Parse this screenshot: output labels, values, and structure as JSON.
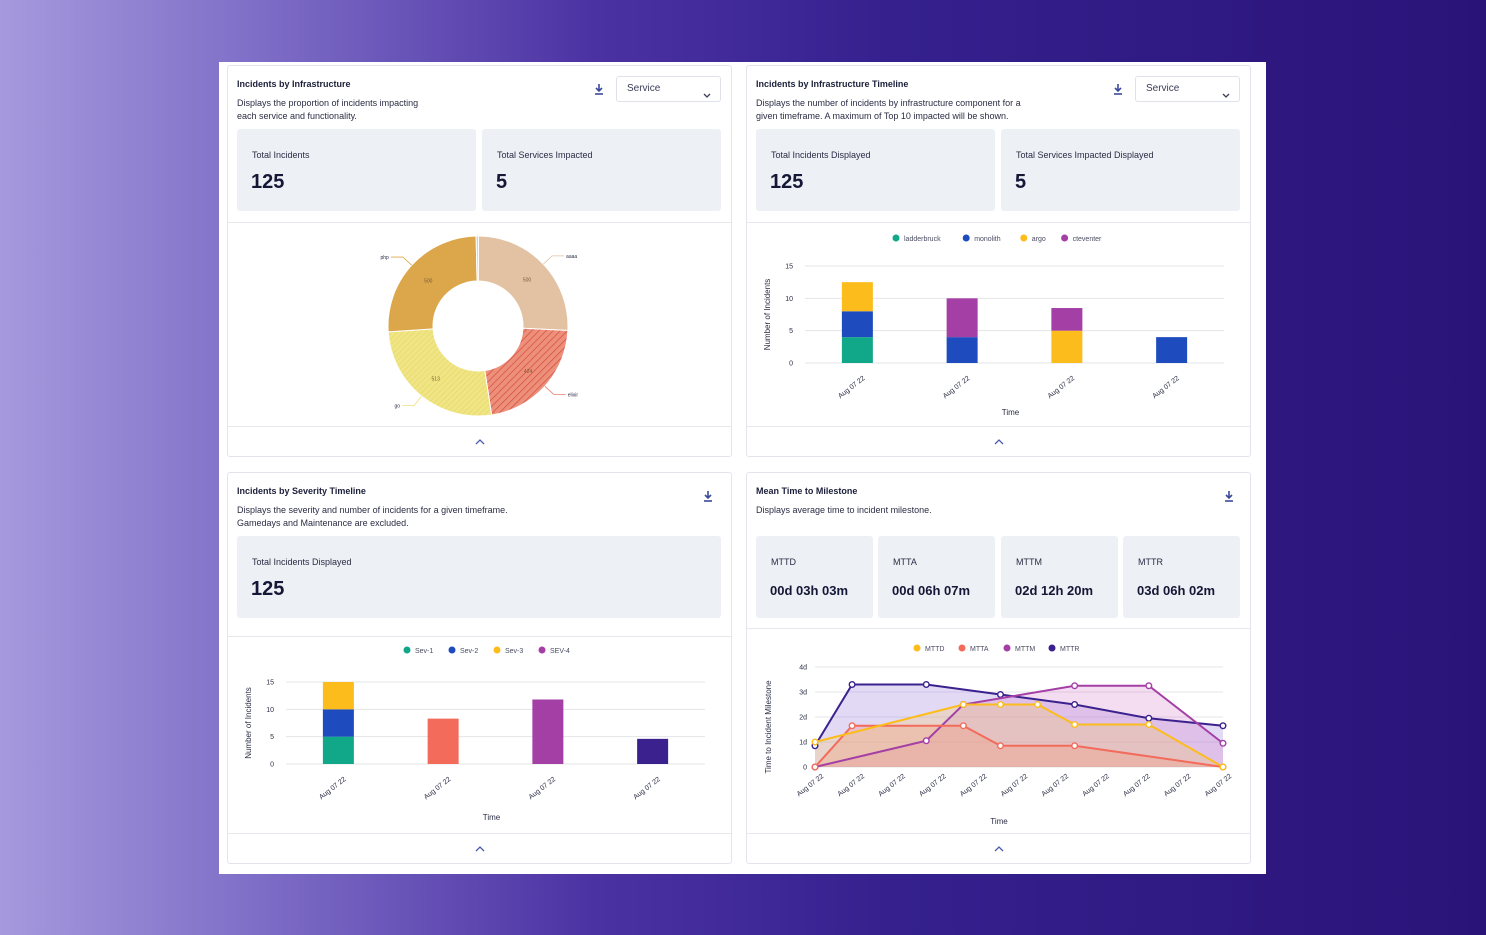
{
  "cards": {
    "infra": {
      "title": "Incidents by Infrastructure",
      "description": "Displays the proportion of incidents impacting\neach service and functionality.",
      "select_value": "Service",
      "stats": [
        {
          "label": "Total Incidents",
          "value": "125"
        },
        {
          "label": "Total Services Impacted",
          "value": "5"
        }
      ]
    },
    "infra_timeline": {
      "title": "Incidents by Infrastructure Timeline",
      "description": "Displays the number of incidents by infrastructure component for a\ngiven timeframe. A maximum of Top 10 impacted will be shown.",
      "select_value": "Service",
      "stats": [
        {
          "label": "Total Incidents Displayed",
          "value": "125"
        },
        {
          "label": "Total Services Impacted Displayed",
          "value": "5"
        }
      ]
    },
    "severity": {
      "title": "Incidents by Severity Timeline",
      "description": "Displays the severity and number of incidents for a given timeframe.\nGamedays and Maintenance are excluded.",
      "stats": [
        {
          "label": "Total Incidents Displayed",
          "value": "125"
        }
      ]
    },
    "mttm": {
      "title": "Mean Time to Milestone",
      "description": "Displays average time to incident milestone.",
      "stats": [
        {
          "label": "MTTD",
          "value": "00d 03h 03m"
        },
        {
          "label": "MTTA",
          "value": "00d 06h 07m"
        },
        {
          "label": "MTTM",
          "value": "02d 12h 20m"
        },
        {
          "label": "MTTR",
          "value": "03d 06h 02m"
        }
      ]
    }
  },
  "icons": {
    "download": "download-icon",
    "chevron_down": "chevron-down-icon",
    "chevron_up": "chevron-up-icon"
  },
  "chart_data": [
    {
      "type": "pie",
      "variant": "donut",
      "slices": [
        {
          "label": "aaaa",
          "value": 500,
          "color": "#e2c2a2"
        },
        {
          "label": "elixir",
          "value": 424,
          "color": "#e9826e",
          "pattern": "hatched"
        },
        {
          "label": "go",
          "value": 513,
          "color": "#eee07a",
          "pattern": "hatched"
        },
        {
          "label": "php",
          "value": 500,
          "color": "#dca64b"
        },
        {
          "label": "",
          "value": 8,
          "color": "#c8d1c8"
        }
      ]
    },
    {
      "type": "bar",
      "stacked": true,
      "categories": [
        "Aug 07 22",
        "Aug 07 22",
        "Aug 07 22",
        "Aug 07 22"
      ],
      "series": [
        {
          "name": "ladderbruck",
          "color": "#11a88a",
          "values": [
            4,
            0,
            0,
            0
          ]
        },
        {
          "name": "monolith",
          "color": "#1e4bbe",
          "values": [
            4,
            4,
            0,
            4
          ]
        },
        {
          "name": "argo",
          "color": "#fcbd1c",
          "values": [
            4.5,
            0,
            5,
            0
          ]
        },
        {
          "name": "cteventer",
          "color": "#a43fa6",
          "values": [
            0,
            6,
            3.5,
            0
          ]
        }
      ],
      "xlabel": "Time",
      "ylabel": "Number of Incidents",
      "ylim": [
        0,
        15
      ],
      "yticks": [
        0,
        5,
        10,
        15
      ],
      "grid": true,
      "legend": "top"
    },
    {
      "type": "bar",
      "stacked": true,
      "categories": [
        "Aug 07 22",
        "Aug 07 22",
        "Aug 07 22",
        "Aug 07 22"
      ],
      "series": [
        {
          "name": "Sev-1",
          "color": "#11a88a",
          "values": [
            5,
            0,
            0,
            0
          ]
        },
        {
          "name": "Sev-2",
          "color": "#1e4bbe",
          "values": [
            5,
            0,
            0,
            0
          ]
        },
        {
          "name": "Sev-3",
          "color": "#fcbd1c",
          "values": [
            5,
            0,
            0,
            0
          ]
        },
        {
          "name": "SEV-4",
          "color": "#a43fa6",
          "values": [
            0,
            0,
            0,
            0
          ]
        }
      ],
      "other_bars": [
        {
          "index": 1,
          "value": 8.3,
          "color": "#f26b5b"
        },
        {
          "index": 2,
          "value": 11.8,
          "color": "#a43fa6"
        },
        {
          "index": 3,
          "value": 4.6,
          "color": "#3a218e"
        }
      ],
      "xlabel": "Time",
      "ylabel": "Number of Incidents",
      "ylim": [
        0,
        15
      ],
      "yticks": [
        0,
        5,
        10,
        15
      ],
      "grid": true,
      "legend": "top"
    },
    {
      "type": "line",
      "area": true,
      "categories": [
        "Aug 07 22",
        "Aug 07 22",
        "Aug 07 22",
        "Aug 07 22",
        "Aug 07 22",
        "Aug 07 22",
        "Aug 07 22",
        "Aug 07 22",
        "Aug 07 22",
        "Aug 07 22",
        "Aug 07 22",
        "Aug 07 22"
      ],
      "series": [
        {
          "name": "MTTD",
          "color": "#fcbd1c",
          "values": [
            1,
            null,
            null,
            null,
            2.5,
            2.5,
            2.5,
            1.7,
            null,
            1.7,
            null,
            0
          ]
        },
        {
          "name": "MTTA",
          "color": "#f26b5b",
          "values": [
            0,
            1.65,
            null,
            null,
            1.65,
            0.85,
            null,
            0.85,
            null,
            null,
            null,
            0
          ]
        },
        {
          "name": "MTTM",
          "color": "#a43fa6",
          "values": [
            0,
            null,
            null,
            1.05,
            2.5,
            null,
            null,
            3.25,
            null,
            3.25,
            null,
            0.95
          ]
        },
        {
          "name": "MTTR",
          "color": "#3a218e",
          "values": [
            0.85,
            3.3,
            null,
            3.3,
            null,
            2.9,
            null,
            2.5,
            null,
            1.95,
            null,
            1.65
          ]
        }
      ],
      "xlabel": "Time",
      "ylabel": "Time to Incident Milestone",
      "yticks": [
        "0",
        "1d",
        "2d",
        "3d",
        "4d"
      ],
      "ylim": [
        0,
        4
      ],
      "grid": true,
      "legend": "top"
    }
  ]
}
